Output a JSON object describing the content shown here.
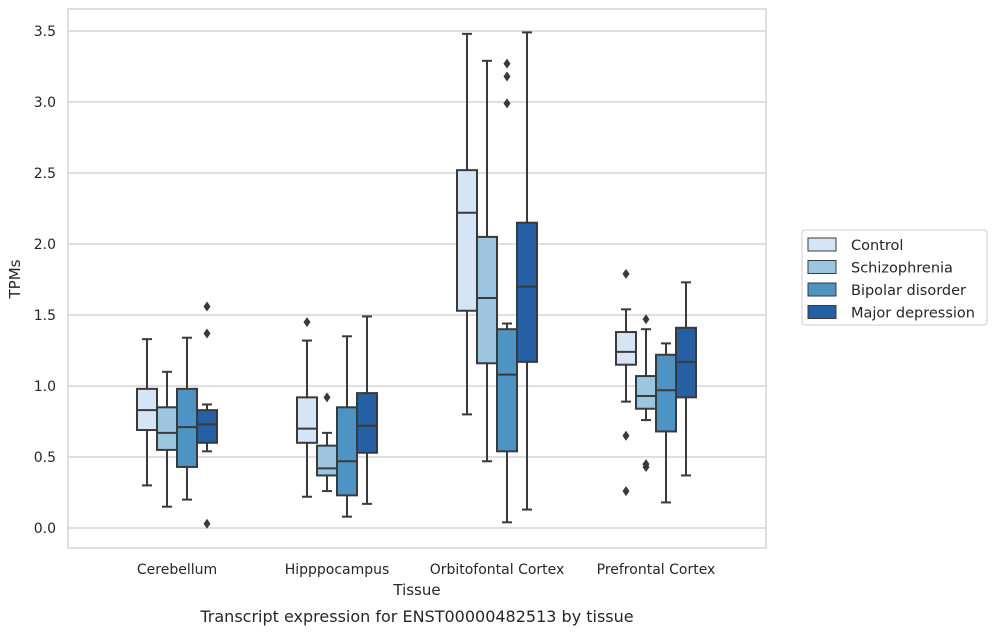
{
  "chart_data": {
    "type": "box",
    "title": "",
    "caption": "Transcript expression for ENST00000482513 by tissue",
    "xlabel": "Tissue",
    "ylabel": "TPMs",
    "ylim": [
      -0.14,
      3.66
    ],
    "yticks": [
      0.0,
      0.5,
      1.0,
      1.5,
      2.0,
      2.5,
      3.0,
      3.5
    ],
    "ytick_labels": [
      "0.0",
      "0.5",
      "1.0",
      "1.5",
      "2.0",
      "2.5",
      "3.0",
      "3.5"
    ],
    "grid": "horizontal",
    "legend_position": "outside-right",
    "categories": [
      "Cerebellum",
      "Hipppocampus",
      "Orbitofontal Cortex",
      "Prefrontal Cortex"
    ],
    "series": [
      {
        "name": "Control",
        "color": "#d6e5f5",
        "boxes": [
          {
            "whisker_low": 0.3,
            "q1": 0.69,
            "median": 0.83,
            "q3": 0.98,
            "whisker_high": 1.33,
            "outliers": []
          },
          {
            "whisker_low": 0.22,
            "q1": 0.6,
            "median": 0.7,
            "q3": 0.92,
            "whisker_high": 1.32,
            "outliers": [
              1.45
            ]
          },
          {
            "whisker_low": 0.8,
            "q1": 1.53,
            "median": 2.22,
            "q3": 2.52,
            "whisker_high": 3.48,
            "outliers": []
          },
          {
            "whisker_low": 0.89,
            "q1": 1.15,
            "median": 1.24,
            "q3": 1.38,
            "whisker_high": 1.54,
            "outliers": [
              1.79,
              0.65,
              0.26
            ]
          }
        ]
      },
      {
        "name": "Schizophrenia",
        "color": "#9cc6e0",
        "boxes": [
          {
            "whisker_low": 0.15,
            "q1": 0.55,
            "median": 0.67,
            "q3": 0.85,
            "whisker_high": 1.1,
            "outliers": []
          },
          {
            "whisker_low": 0.26,
            "q1": 0.37,
            "median": 0.42,
            "q3": 0.58,
            "whisker_high": 0.67,
            "outliers": [
              0.92
            ]
          },
          {
            "whisker_low": 0.47,
            "q1": 1.16,
            "median": 1.62,
            "q3": 2.05,
            "whisker_high": 3.29,
            "outliers": []
          },
          {
            "whisker_low": 0.76,
            "q1": 0.84,
            "median": 0.93,
            "q3": 1.07,
            "whisker_high": 1.4,
            "outliers": [
              1.47,
              0.45,
              0.43
            ]
          }
        ]
      },
      {
        "name": "Bipolar disorder",
        "color": "#4d93c4",
        "boxes": [
          {
            "whisker_low": 0.2,
            "q1": 0.43,
            "median": 0.71,
            "q3": 0.98,
            "whisker_high": 1.34,
            "outliers": []
          },
          {
            "whisker_low": 0.08,
            "q1": 0.23,
            "median": 0.47,
            "q3": 0.85,
            "whisker_high": 1.35,
            "outliers": []
          },
          {
            "whisker_low": 0.04,
            "q1": 0.54,
            "median": 1.08,
            "q3": 1.4,
            "whisker_high": 1.44,
            "outliers": [
              3.27,
              3.18,
              2.99
            ]
          },
          {
            "whisker_low": 0.18,
            "q1": 0.68,
            "median": 0.97,
            "q3": 1.22,
            "whisker_high": 1.3,
            "outliers": []
          }
        ]
      },
      {
        "name": "Major depression",
        "color": "#2460a3",
        "boxes": [
          {
            "whisker_low": 0.54,
            "q1": 0.6,
            "median": 0.73,
            "q3": 0.83,
            "whisker_high": 0.87,
            "outliers": [
              1.56,
              1.37,
              0.03
            ]
          },
          {
            "whisker_low": 0.17,
            "q1": 0.53,
            "median": 0.72,
            "q3": 0.95,
            "whisker_high": 1.49,
            "outliers": []
          },
          {
            "whisker_low": 0.13,
            "q1": 1.17,
            "median": 1.7,
            "q3": 2.15,
            "whisker_high": 3.49,
            "outliers": []
          },
          {
            "whisker_low": 0.37,
            "q1": 0.92,
            "median": 1.17,
            "q3": 1.41,
            "whisker_high": 1.73,
            "outliers": []
          }
        ]
      }
    ]
  }
}
